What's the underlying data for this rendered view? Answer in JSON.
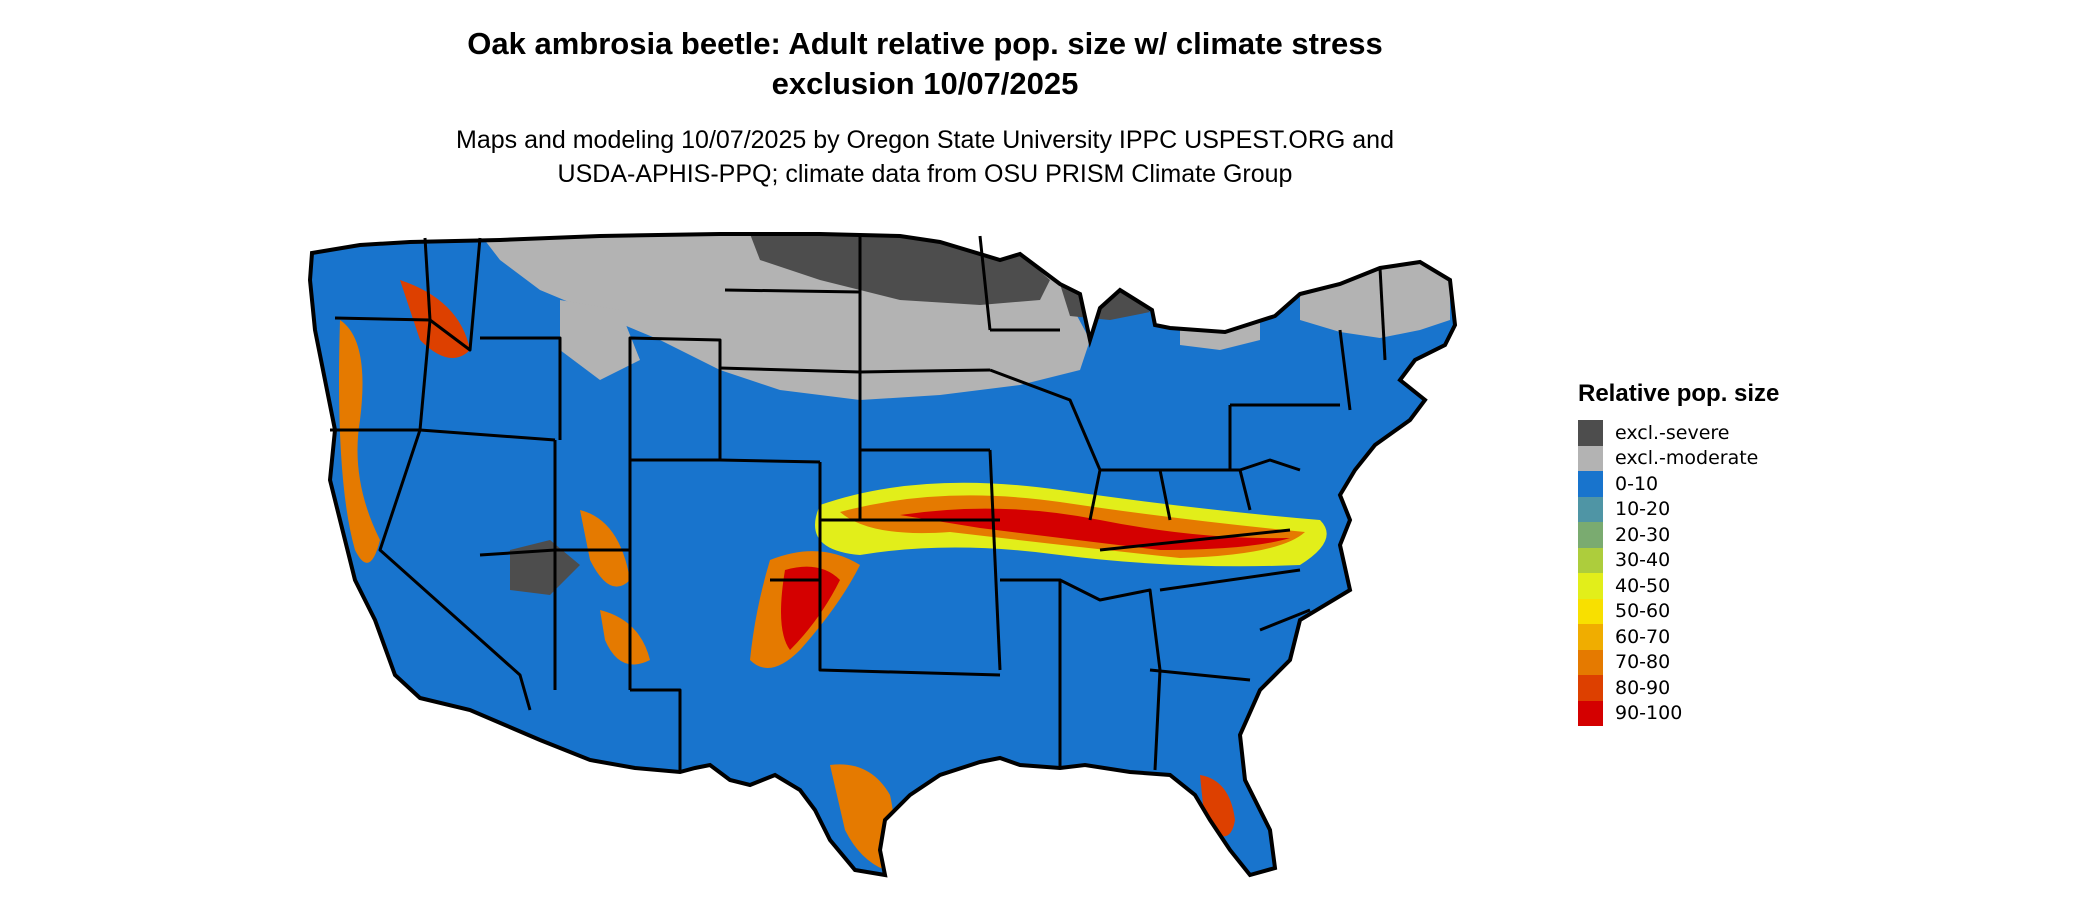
{
  "title_line1": "Oak ambrosia beetle: Adult relative pop. size w/ climate stress",
  "title_line2": "exclusion 10/07/2025",
  "subtitle_line1": "Maps and modeling 10/07/2025 by Oregon State University IPPC USPEST.ORG and",
  "subtitle_line2": "USDA-APHIS-PPQ; climate data from OSU PRISM Climate Group",
  "map": {
    "region": "Contiguous United States",
    "ocean_color": "#ffffff",
    "state_border_color": "#000000"
  },
  "legend": {
    "title": "Relative pop. size",
    "items": [
      {
        "label": "excl.-severe",
        "color": "#4d4d4d"
      },
      {
        "label": "excl.-moderate",
        "color": "#b3b3b3"
      },
      {
        "label": "0-10",
        "color": "#1874cd"
      },
      {
        "label": "10-20",
        "color": "#4f95a5"
      },
      {
        "label": "20-30",
        "color": "#7aab70"
      },
      {
        "label": "30-40",
        "color": "#adcd3c"
      },
      {
        "label": "40-50",
        "color": "#e2ee1a"
      },
      {
        "label": "50-60",
        "color": "#f8e000"
      },
      {
        "label": "60-70",
        "color": "#f0ad00"
      },
      {
        "label": "70-80",
        "color": "#e57a00"
      },
      {
        "label": "80-90",
        "color": "#dd4000"
      },
      {
        "label": "90-100",
        "color": "#d40000"
      }
    ]
  }
}
